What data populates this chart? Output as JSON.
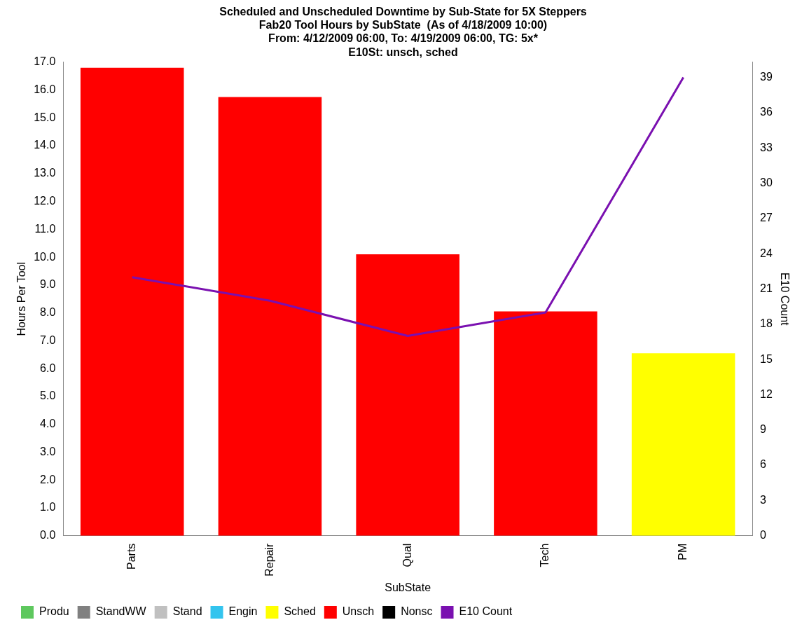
{
  "chart_data": {
    "type": "bar",
    "stacked": true,
    "title": "Scheduled and Unscheduled Downtime by Sub-State for 5X Steppers",
    "subtitle": "Fab20 Tool Hours by SubState  (As of 4/18/2009 10:00)\nFrom: 4/12/2009 06:00, To: 4/19/2009 06:00, TG: 5x*\nE10St: unsch, sched",
    "xlabel": "SubState",
    "ylabel": "Hours Per Tool",
    "y2label": "E10 Count",
    "categories": [
      "Parts",
      "Repair",
      "Qual",
      "Tech",
      "PM"
    ],
    "series": [
      {
        "name": "Produ",
        "color": "#5ec85e",
        "values": [
          null,
          null,
          null,
          null,
          null
        ]
      },
      {
        "name": "StandWW",
        "color": "#808080",
        "values": [
          null,
          null,
          null,
          null,
          null
        ]
      },
      {
        "name": "Stand",
        "color": "#c0c0c0",
        "values": [
          null,
          null,
          null,
          null,
          null
        ]
      },
      {
        "name": "Engin",
        "color": "#33c4ee",
        "values": [
          null,
          null,
          null,
          null,
          null
        ]
      },
      {
        "name": "Sched",
        "color": "#ffff00",
        "values": [
          null,
          null,
          null,
          null,
          6.55
        ]
      },
      {
        "name": "Unsch",
        "color": "#ff0000",
        "values": [
          16.8,
          15.75,
          10.1,
          8.05,
          null
        ]
      },
      {
        "name": "Nonsc",
        "color": "#000000",
        "values": [
          null,
          null,
          null,
          null,
          null
        ]
      },
      {
        "name": "E10 Count",
        "type": "line",
        "axis": "y2",
        "color": "#7a10b0",
        "values": [
          22,
          20,
          17,
          19,
          39
        ]
      }
    ],
    "ylim": [
      0,
      17
    ],
    "yticks": [
      {
        "value": 0,
        "label": "0.0"
      },
      {
        "value": 1,
        "label": "1.0"
      },
      {
        "value": 2,
        "label": "2.0"
      },
      {
        "value": 3,
        "label": "3.0"
      },
      {
        "value": 4,
        "label": "4.0"
      },
      {
        "value": 5,
        "label": "5.0"
      },
      {
        "value": 6,
        "label": "6.0"
      },
      {
        "value": 7,
        "label": "7.0"
      },
      {
        "value": 8,
        "label": "8.0"
      },
      {
        "value": 9,
        "label": "9.0"
      },
      {
        "value": 10,
        "label": "10.0"
      },
      {
        "value": 11,
        "label": "11.0"
      },
      {
        "value": 12,
        "label": "12.0"
      },
      {
        "value": 13,
        "label": "13.0"
      },
      {
        "value": 14,
        "label": "14.0"
      },
      {
        "value": 15,
        "label": "15.0"
      },
      {
        "value": 16,
        "label": "16.0"
      },
      {
        "value": 17,
        "label": "17.0"
      }
    ],
    "y2lim": [
      0,
      40.3
    ],
    "y2ticks": [
      0,
      3,
      6,
      9,
      12,
      15,
      18,
      21,
      24,
      27,
      30,
      33,
      36,
      39
    ],
    "legend": "bottom",
    "grid": false,
    "marker": "none"
  }
}
